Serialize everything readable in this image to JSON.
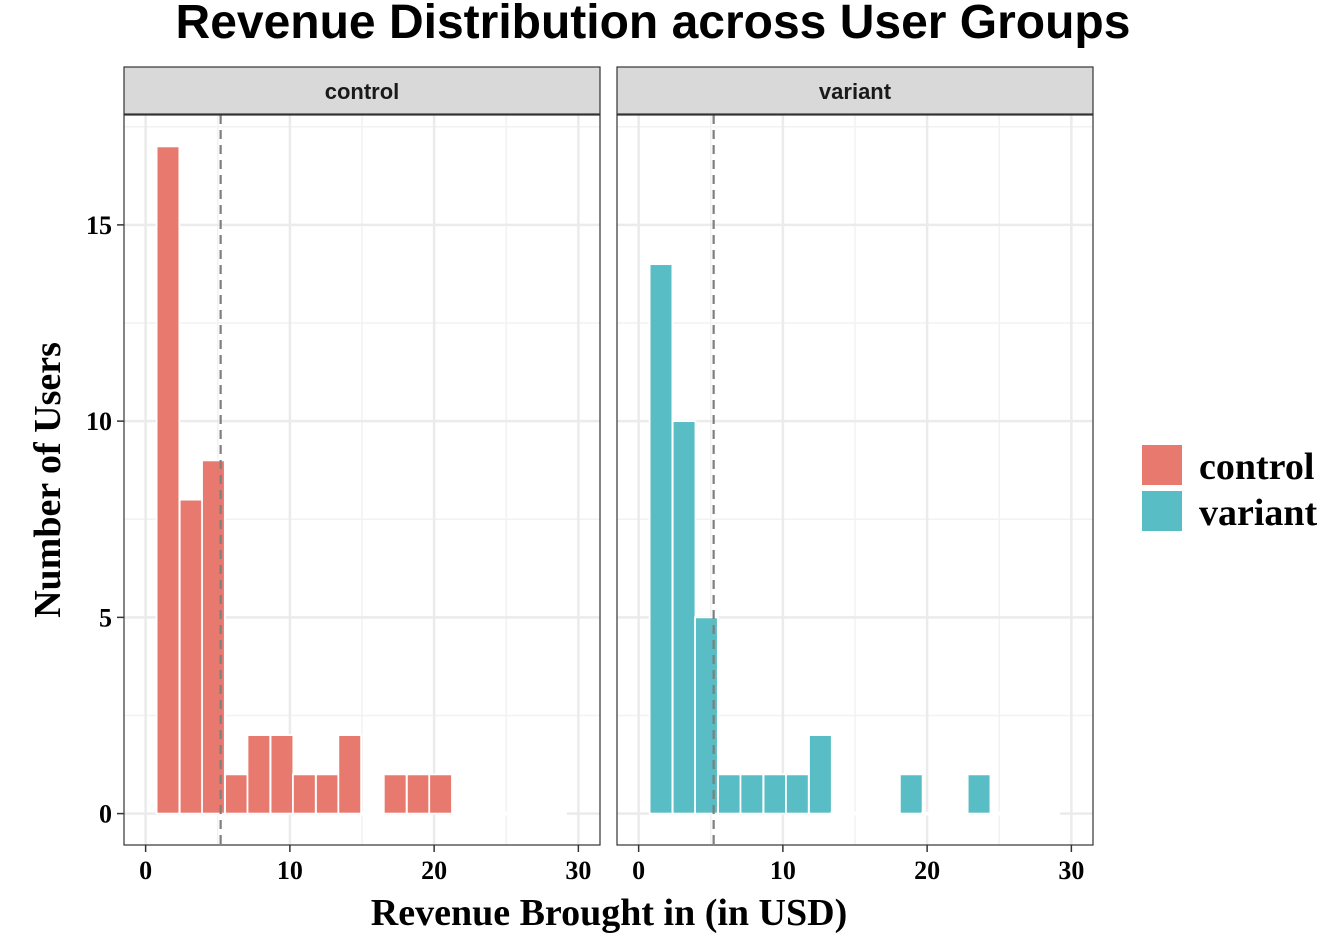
{
  "chart_data": {
    "type": "bar",
    "title": "Revenue Distribution across User Groups",
    "xlabel": "Revenue Brought in (in USD)",
    "ylabel": "Number of Users",
    "xlim": [
      -1.5,
      31.5
    ],
    "ylim": [
      -0.8,
      17.8
    ],
    "x_ticks": [
      0,
      10,
      20,
      30
    ],
    "y_ticks": [
      0,
      5,
      10,
      15
    ],
    "bin_width": 1.58,
    "mean_line_x": 5.2,
    "grid": true,
    "legend_position": "right",
    "panels": [
      {
        "name": "control",
        "strip_label": "control",
        "color": "#E8796E",
        "bins": [
          {
            "x": 1.55,
            "count": 17
          },
          {
            "x": 3.15,
            "count": 8
          },
          {
            "x": 4.7,
            "count": 9
          },
          {
            "x": 6.3,
            "count": 1
          },
          {
            "x": 7.85,
            "count": 2
          },
          {
            "x": 9.45,
            "count": 2
          },
          {
            "x": 11.0,
            "count": 1
          },
          {
            "x": 12.6,
            "count": 1
          },
          {
            "x": 14.15,
            "count": 2
          },
          {
            "x": 15.75,
            "count": 0
          },
          {
            "x": 17.3,
            "count": 1
          },
          {
            "x": 18.9,
            "count": 1
          },
          {
            "x": 20.45,
            "count": 1
          },
          {
            "x": 22.05,
            "count": 0
          },
          {
            "x": 23.6,
            "count": 0
          },
          {
            "x": 25.2,
            "count": 0
          },
          {
            "x": 26.75,
            "count": 0
          },
          {
            "x": 28.35,
            "count": 0
          }
        ]
      },
      {
        "name": "variant",
        "strip_label": "variant",
        "color": "#58BDC4",
        "bins": [
          {
            "x": 1.55,
            "count": 14
          },
          {
            "x": 3.15,
            "count": 10
          },
          {
            "x": 4.7,
            "count": 5
          },
          {
            "x": 6.3,
            "count": 1
          },
          {
            "x": 7.85,
            "count": 1
          },
          {
            "x": 9.45,
            "count": 1
          },
          {
            "x": 11.0,
            "count": 1
          },
          {
            "x": 12.6,
            "count": 2
          },
          {
            "x": 14.15,
            "count": 0
          },
          {
            "x": 15.75,
            "count": 0
          },
          {
            "x": 17.3,
            "count": 0
          },
          {
            "x": 18.9,
            "count": 1
          },
          {
            "x": 20.45,
            "count": 0
          },
          {
            "x": 22.05,
            "count": 0
          },
          {
            "x": 23.6,
            "count": 1
          },
          {
            "x": 25.2,
            "count": 0
          },
          {
            "x": 26.75,
            "count": 0
          },
          {
            "x": 28.35,
            "count": 0
          }
        ]
      }
    ],
    "legend": [
      {
        "label": "control",
        "color": "#E8796E"
      },
      {
        "label": "variant",
        "color": "#58BDC4"
      }
    ]
  }
}
